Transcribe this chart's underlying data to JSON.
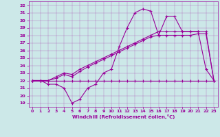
{
  "bg_color": "#cce8e8",
  "line_color": "#990099",
  "xlabel": "Windchill (Refroidissement éolien,°C)",
  "xlim": [
    -0.5,
    23.5
  ],
  "ylim": [
    18.5,
    32.5
  ],
  "yticks": [
    19,
    20,
    21,
    22,
    23,
    24,
    25,
    26,
    27,
    28,
    29,
    30,
    31,
    32
  ],
  "xticks": [
    0,
    1,
    2,
    3,
    4,
    5,
    6,
    7,
    8,
    9,
    10,
    11,
    12,
    13,
    14,
    15,
    16,
    17,
    18,
    19,
    20,
    21,
    22,
    23
  ],
  "hours": [
    0,
    1,
    2,
    3,
    4,
    5,
    6,
    7,
    8,
    9,
    10,
    11,
    12,
    13,
    14,
    15,
    16,
    17,
    18,
    19,
    20,
    21,
    22,
    23
  ],
  "flat_line": [
    22,
    22,
    22,
    22,
    22,
    22,
    22,
    22,
    22,
    22,
    22,
    22,
    22,
    22,
    22,
    22,
    22,
    22,
    22,
    22,
    22,
    22,
    22,
    22
  ],
  "windchill_line": [
    22,
    22,
    21.5,
    21.5,
    21,
    19,
    19.5,
    21,
    21.5,
    23,
    23.5,
    26.5,
    29,
    31,
    31.5,
    31.2,
    28,
    30.5,
    30.5,
    28.5,
    28.5,
    28.5,
    23.5,
    22
  ],
  "trend_line1": [
    22,
    22,
    22,
    22.3,
    22.8,
    22.5,
    23.2,
    23.8,
    24.3,
    24.8,
    25.3,
    25.8,
    26.3,
    26.8,
    27.3,
    27.8,
    28.0,
    28.0,
    28.0,
    28.0,
    28.0,
    28.2,
    28.2,
    22
  ],
  "trend_line2": [
    22,
    22,
    22,
    22.5,
    23.0,
    22.8,
    23.5,
    24.0,
    24.5,
    25.0,
    25.5,
    26.0,
    26.5,
    27.0,
    27.5,
    28.0,
    28.5,
    28.5,
    28.5,
    28.5,
    28.5,
    28.5,
    28.5,
    22
  ]
}
